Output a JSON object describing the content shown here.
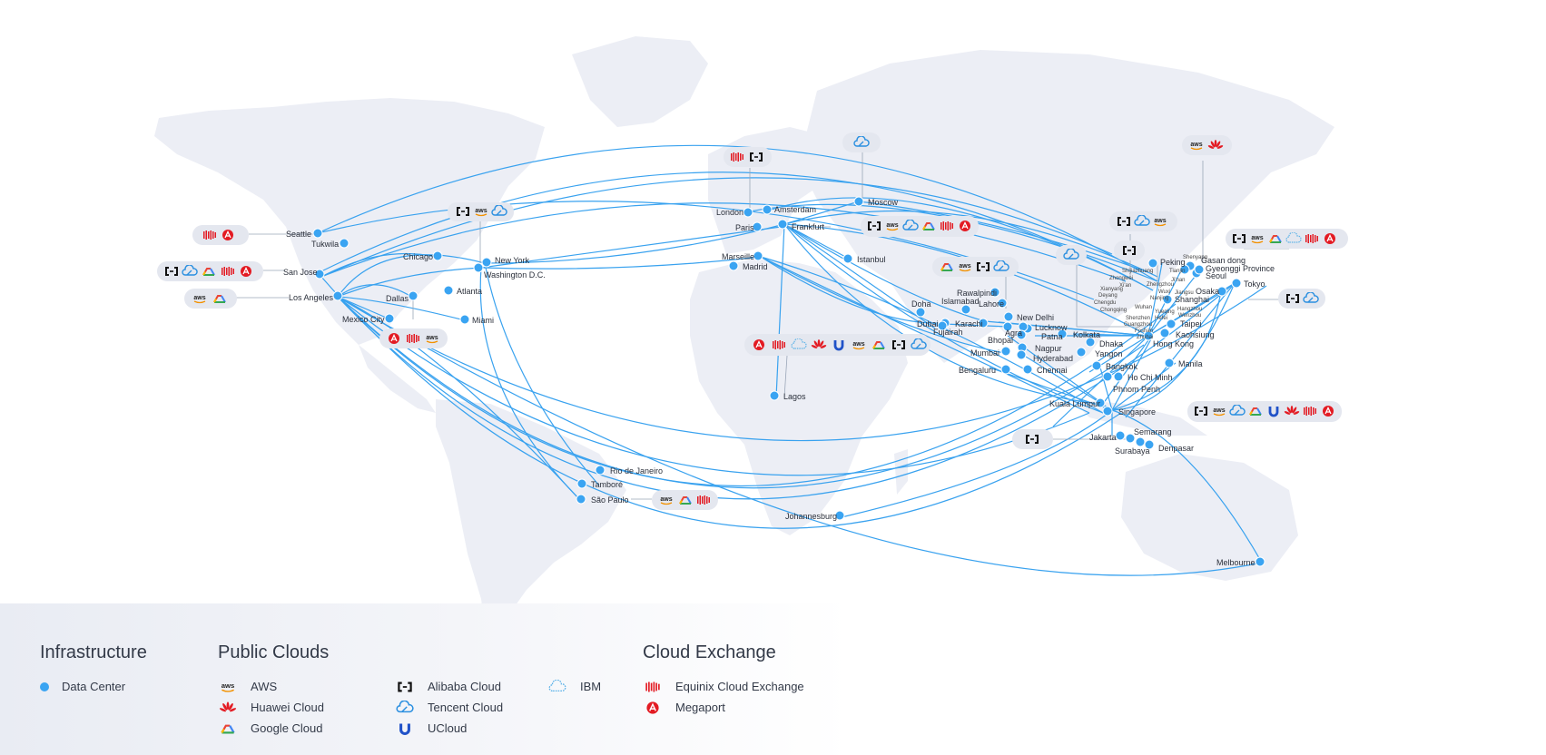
{
  "colors": {
    "route": "#39a2ef",
    "dot": "#3aa4f2",
    "land": "#eceef5",
    "badge": "#e4e7ef"
  },
  "icons": {
    "aws": {
      "name": "aws-icon",
      "color": "#222"
    },
    "huawei": {
      "name": "huawei-icon",
      "color": "#e31b23"
    },
    "google": {
      "name": "google-cloud-icon",
      "color": "#4285f4"
    },
    "alibaba": {
      "name": "alibaba-cloud-icon",
      "color": "#111"
    },
    "tencent": {
      "name": "tencent-cloud-icon",
      "color": "#2a8fe0"
    },
    "ucloud": {
      "name": "ucloud-icon",
      "color": "#2052c8"
    },
    "ibm": {
      "name": "ibm-icon",
      "color": "#5db3e8"
    },
    "equinix": {
      "name": "equinix-icon",
      "color": "#e31b23"
    },
    "megaport": {
      "name": "megaport-icon",
      "color": "#e31b23"
    }
  },
  "cities": {
    "seattle": "Seattle",
    "tukwila": "Tukwila",
    "sanjose": "San Jose",
    "losangeles": "Los Angeles",
    "mexicocity": "Mexico City",
    "dallas": "Dallas",
    "chicago": "Chicago",
    "atlanta": "Atlanta",
    "miami": "Miami",
    "newyork": "New York",
    "washington": "Washington D.C.",
    "riodejaneiro": "Rio de Janeiro",
    "tambore": "Tamboré",
    "saopaulo": "São Paulo",
    "london": "London",
    "amsterdam": "Amsterdam",
    "paris": "Paris",
    "frankfurt": "Frankfurt",
    "marseille": "Marseille",
    "madrid": "Madrid",
    "moscow": "Moscow",
    "istanbul": "Istanbul",
    "lagos": "Lagos",
    "johannesburg": "Johannesburg",
    "doha": "Doha",
    "dubai": "Dubai",
    "fujairah": "Fujairah",
    "rawalpindi": "Rawalpindi",
    "islamabad": "Islamabad",
    "lahore": "Lahore",
    "karachi": "Karachi",
    "newdelhi": "New Delhi",
    "agra": "Agra",
    "lucknow": "Lucknow",
    "patna": "Patna",
    "bhopal": "Bhopal",
    "kolkata": "Kolkata",
    "nagpur": "Nagpur",
    "mumbai": "Mumbai",
    "hyderabad": "Hyderabad",
    "dhaka": "Dhaka",
    "yangon": "Yangon",
    "bengaluru": "Bengaluru",
    "chennai": "Chennai",
    "bangkok": "Bangkok",
    "hochiminh": "Ho Chi Minh",
    "phnompenh": "Phnom Penh",
    "kualalumpur": "Kuala Lumpur",
    "singapore": "Singapore",
    "jakarta": "Jakarta",
    "semarang": "Semarang",
    "surabaya": "Surabaya",
    "denpasar": "Denpasar",
    "manila": "Manila",
    "hongkong": "Hong Kong",
    "taipei": "Taipei",
    "kaohsiung": "Kaohsiung",
    "shanghai": "Shanghai",
    "seoul": "Seoul",
    "gyeonggi": "Gyeonggi Province",
    "gasandong": "Gasan dong",
    "peking": "Peking",
    "osaka": "Osaka",
    "tokyo": "Tokyo",
    "melbourne": "Melbourne",
    "shenyang": "Shenyang",
    "tianjin": "Tianjin",
    "shijiazhuang": "Shijiazhuang",
    "jinan": "Ji'nan",
    "zhongwei": "Zhongwei",
    "xian": "Xi'an",
    "zhengzhou": "Zhengzhou",
    "xianyang": "Xianyang",
    "deyang": "Deyang",
    "chengdu": "Chengdu",
    "chongqing": "Chongqing",
    "wuxi": "Wuxi",
    "jiangsu": "Jiangsu",
    "nanjing": "Nanjing",
    "wuhan": "Wuhan",
    "hangzhou": "Hangzhou",
    "yueqing": "Yueqing",
    "wenzhou": "Wenzhou",
    "hefei": "Hefei",
    "shenzhen": "Shenzhen",
    "guangzhou": "Guangzhou",
    "foshan": "Foshan",
    "zhuhai": "Zhuhai"
  },
  "legend": {
    "infrastructure": {
      "title": "Infrastructure",
      "data_center": "Data Center"
    },
    "public_clouds": {
      "title": "Public Clouds",
      "aws": "AWS",
      "huawei": "Huawei Cloud",
      "google": "Google Cloud",
      "alibaba": "Alibaba Cloud",
      "tencent": "Tencent Cloud",
      "ucloud": "UCloud",
      "ibm": "IBM"
    },
    "cloud_exchange": {
      "title": "Cloud Exchange",
      "equinix": "Equinix Cloud Exchange",
      "megaport": "Megaport"
    }
  }
}
